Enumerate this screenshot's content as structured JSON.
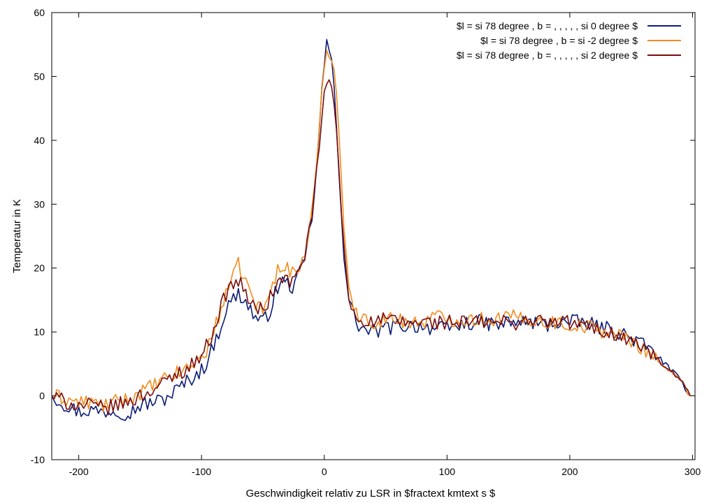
{
  "chart_data": {
    "type": "line",
    "xlabel": "Geschwindigkeit relativ zu LSR in $fractext kmtext s $",
    "ylabel": "Temperatur in K",
    "xlim": [
      -222,
      302
    ],
    "ylim": [
      -10,
      60
    ],
    "xticks": [
      -200,
      -100,
      0,
      100,
      200,
      300
    ],
    "yticks": [
      -10,
      0,
      10,
      20,
      30,
      40,
      50,
      60
    ],
    "grid": false,
    "legend_position": "top-right",
    "series": [
      {
        "name": "$l = si 78 degree , b = , , , , , si 0 degree $",
        "color": "#0b1d78",
        "points": [
          [
            -222,
            0.0
          ],
          [
            -210,
            -1.5
          ],
          [
            -200,
            -2.5
          ],
          [
            -190,
            -2.2
          ],
          [
            -180,
            -2.5
          ],
          [
            -170,
            -2.2
          ],
          [
            -160,
            -2.8
          ],
          [
            -150,
            -1.5
          ],
          [
            -140,
            -1.0
          ],
          [
            -130,
            -0.5
          ],
          [
            -120,
            1.0
          ],
          [
            -110,
            2.5
          ],
          [
            -100,
            4.0
          ],
          [
            -95,
            5.5
          ],
          [
            -90,
            8.0
          ],
          [
            -85,
            10.5
          ],
          [
            -80,
            13.5
          ],
          [
            -75,
            15.0
          ],
          [
            -70,
            16.0
          ],
          [
            -65,
            15.0
          ],
          [
            -60,
            13.5
          ],
          [
            -55,
            12.0
          ],
          [
            -50,
            11.5
          ],
          [
            -45,
            13.0
          ],
          [
            -40,
            16.0
          ],
          [
            -35,
            18.0
          ],
          [
            -30,
            17.5
          ],
          [
            -25,
            17.0
          ],
          [
            -20,
            19.0
          ],
          [
            -15,
            22.0
          ],
          [
            -10,
            28.0
          ],
          [
            -5,
            38.0
          ],
          [
            -2,
            48.0
          ],
          [
            0,
            52.0
          ],
          [
            2,
            55.0
          ],
          [
            5,
            54.0
          ],
          [
            8,
            48.0
          ],
          [
            10,
            42.0
          ],
          [
            13,
            32.0
          ],
          [
            16,
            22.0
          ],
          [
            20,
            15.0
          ],
          [
            25,
            12.0
          ],
          [
            30,
            10.5
          ],
          [
            40,
            10.0
          ],
          [
            50,
            10.5
          ],
          [
            60,
            11.0
          ],
          [
            70,
            11.0
          ],
          [
            80,
            11.0
          ],
          [
            90,
            10.5
          ],
          [
            100,
            10.5
          ],
          [
            110,
            11.0
          ],
          [
            120,
            11.5
          ],
          [
            130,
            11.5
          ],
          [
            140,
            11.0
          ],
          [
            150,
            11.5
          ],
          [
            160,
            11.5
          ],
          [
            170,
            11.5
          ],
          [
            180,
            11.0
          ],
          [
            190,
            11.5
          ],
          [
            200,
            11.5
          ],
          [
            210,
            11.5
          ],
          [
            220,
            11.0
          ],
          [
            230,
            10.5
          ],
          [
            240,
            10.0
          ],
          [
            250,
            9.0
          ],
          [
            260,
            8.0
          ],
          [
            270,
            6.5
          ],
          [
            280,
            4.5
          ],
          [
            290,
            2.5
          ],
          [
            298,
            0.0
          ]
        ]
      },
      {
        "name": "$l = si 78 degree , b = si -2 degree $",
        "color": "#f28c1c",
        "points": [
          [
            -222,
            0.0
          ],
          [
            -210,
            -0.5
          ],
          [
            -200,
            -1.0
          ],
          [
            -190,
            -1.0
          ],
          [
            -180,
            -1.5
          ],
          [
            -170,
            -1.0
          ],
          [
            -160,
            -0.5
          ],
          [
            -150,
            0.5
          ],
          [
            -140,
            1.5
          ],
          [
            -130,
            2.5
          ],
          [
            -120,
            3.5
          ],
          [
            -110,
            4.5
          ],
          [
            -100,
            6.0
          ],
          [
            -95,
            7.5
          ],
          [
            -90,
            10.0
          ],
          [
            -85,
            13.0
          ],
          [
            -80,
            16.5
          ],
          [
            -75,
            18.0
          ],
          [
            -70,
            20.5
          ],
          [
            -65,
            18.5
          ],
          [
            -60,
            16.0
          ],
          [
            -55,
            14.0
          ],
          [
            -50,
            13.5
          ],
          [
            -45,
            15.5
          ],
          [
            -40,
            18.5
          ],
          [
            -35,
            21.0
          ],
          [
            -30,
            20.0
          ],
          [
            -25,
            19.0
          ],
          [
            -20,
            20.0
          ],
          [
            -15,
            23.0
          ],
          [
            -10,
            29.0
          ],
          [
            -5,
            38.0
          ],
          [
            -2,
            48.0
          ],
          [
            0,
            52.0
          ],
          [
            2,
            53.5
          ],
          [
            5,
            54.0
          ],
          [
            8,
            51.0
          ],
          [
            10,
            47.0
          ],
          [
            13,
            38.0
          ],
          [
            16,
            27.0
          ],
          [
            20,
            17.0
          ],
          [
            25,
            13.0
          ],
          [
            30,
            12.0
          ],
          [
            40,
            11.5
          ],
          [
            50,
            12.0
          ],
          [
            60,
            12.0
          ],
          [
            70,
            11.5
          ],
          [
            80,
            11.5
          ],
          [
            90,
            12.5
          ],
          [
            100,
            12.0
          ],
          [
            110,
            12.0
          ],
          [
            120,
            12.0
          ],
          [
            130,
            12.0
          ],
          [
            140,
            12.0
          ],
          [
            150,
            12.5
          ],
          [
            160,
            12.0
          ],
          [
            170,
            12.0
          ],
          [
            180,
            11.5
          ],
          [
            190,
            11.5
          ],
          [
            200,
            11.0
          ],
          [
            210,
            11.0
          ],
          [
            220,
            10.5
          ],
          [
            230,
            10.0
          ],
          [
            240,
            9.5
          ],
          [
            250,
            8.5
          ],
          [
            260,
            7.5
          ],
          [
            270,
            6.0
          ],
          [
            280,
            4.0
          ],
          [
            290,
            2.5
          ],
          [
            298,
            0.0
          ]
        ]
      },
      {
        "name": "$l = si 78 degree , b = , , , , , si 2 degree $",
        "color": "#7a0c0c",
        "points": [
          [
            -222,
            0.0
          ],
          [
            -210,
            -1.0
          ],
          [
            -200,
            -1.5
          ],
          [
            -190,
            -1.5
          ],
          [
            -180,
            -2.0
          ],
          [
            -170,
            -1.5
          ],
          [
            -160,
            -1.0
          ],
          [
            -150,
            0.0
          ],
          [
            -140,
            1.0
          ],
          [
            -130,
            2.0
          ],
          [
            -120,
            3.5
          ],
          [
            -110,
            4.5
          ],
          [
            -100,
            6.5
          ],
          [
            -95,
            8.0
          ],
          [
            -90,
            10.5
          ],
          [
            -85,
            13.5
          ],
          [
            -80,
            16.0
          ],
          [
            -75,
            17.5
          ],
          [
            -70,
            18.0
          ],
          [
            -65,
            16.5
          ],
          [
            -60,
            14.5
          ],
          [
            -55,
            13.5
          ],
          [
            -50,
            13.5
          ],
          [
            -45,
            15.0
          ],
          [
            -40,
            17.0
          ],
          [
            -35,
            18.5
          ],
          [
            -30,
            18.0
          ],
          [
            -25,
            18.0
          ],
          [
            -20,
            19.5
          ],
          [
            -15,
            23.0
          ],
          [
            -10,
            28.0
          ],
          [
            -5,
            37.0
          ],
          [
            -2,
            44.0
          ],
          [
            0,
            47.0
          ],
          [
            2,
            48.5
          ],
          [
            5,
            49.5
          ],
          [
            8,
            46.0
          ],
          [
            10,
            41.0
          ],
          [
            13,
            32.0
          ],
          [
            16,
            23.0
          ],
          [
            20,
            15.0
          ],
          [
            25,
            12.5
          ],
          [
            30,
            12.0
          ],
          [
            40,
            11.5
          ],
          [
            50,
            12.0
          ],
          [
            60,
            11.5
          ],
          [
            70,
            11.5
          ],
          [
            80,
            11.5
          ],
          [
            90,
            11.5
          ],
          [
            100,
            11.5
          ],
          [
            110,
            11.5
          ],
          [
            120,
            11.5
          ],
          [
            130,
            11.5
          ],
          [
            140,
            11.5
          ],
          [
            150,
            11.5
          ],
          [
            160,
            11.5
          ],
          [
            170,
            12.0
          ],
          [
            180,
            11.5
          ],
          [
            190,
            11.5
          ],
          [
            200,
            11.5
          ],
          [
            210,
            11.0
          ],
          [
            220,
            10.5
          ],
          [
            230,
            10.0
          ],
          [
            240,
            9.5
          ],
          [
            250,
            8.5
          ],
          [
            260,
            7.5
          ],
          [
            270,
            6.0
          ],
          [
            280,
            4.0
          ],
          [
            290,
            2.5
          ],
          [
            298,
            0.0
          ]
        ]
      }
    ]
  }
}
